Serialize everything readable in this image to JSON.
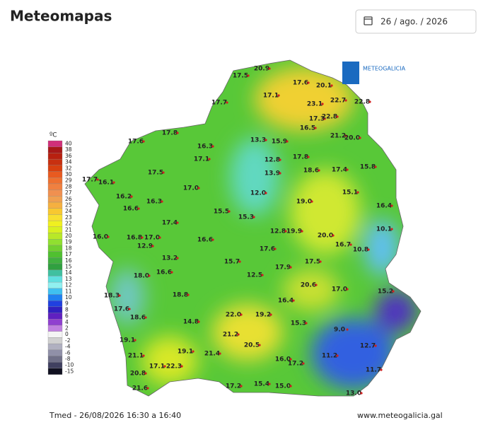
{
  "header": {
    "title": "Meteomapas",
    "date": "26 / ago. / 2026"
  },
  "map": {
    "logo": "METEOGALICIA",
    "caption": "Tmed - 26/08/2026 16:30 a 16:40",
    "website": "www.meteogalicia.gal",
    "readings": [
      "17.5",
      "20.9",
      "17.6",
      "20.1",
      "17.1",
      "17.7",
      "23.1",
      "22.7",
      "22.8",
      "17.3",
      "22.8",
      "16.5",
      "21.2",
      "20.0",
      "17.8",
      "17.6",
      "16.3",
      "13.3",
      "15.9",
      "12.8",
      "17.8",
      "17.1",
      "15.8",
      "17.5",
      "13.9",
      "18.6",
      "17.4",
      "17.7",
      "16.1",
      "17.0",
      "12.0",
      "15.1",
      "16.2",
      "16.3",
      "19.0",
      "16.6",
      "16.4",
      "15.5",
      "15.3",
      "17.4",
      "12.8",
      "19.9",
      "20.0",
      "10.1",
      "16.8",
      "17.0",
      "16.6",
      "16.0",
      "12.9",
      "17.6",
      "16.7",
      "10.8",
      "13.2",
      "15.7",
      "17.9",
      "17.5",
      "12.5",
      "18.8",
      "16.4",
      "20.6",
      "17.0",
      "15.2",
      "22.0",
      "19.2",
      "15.3",
      "9.0",
      "21.2",
      "20.5",
      "16.0",
      "17.2",
      "11.2",
      "12.7",
      "11.7",
      "17.2",
      "15.4",
      "15.0",
      "13.0",
      "21.6",
      "20.8",
      "17.1",
      "22.3",
      "21.4",
      "19.1",
      "14.8",
      "16.6",
      "18.0",
      "18.3",
      "17.6",
      "19.1",
      "21.1",
      "18.6"
    ]
  },
  "legend": {
    "unit": "ºC",
    "items": [
      {
        "label": "40",
        "color": "#d0307a"
      },
      {
        "label": "38",
        "color": "#a81818"
      },
      {
        "label": "36",
        "color": "#b82010"
      },
      {
        "label": "34",
        "color": "#c83010"
      },
      {
        "label": "32",
        "color": "#d84010"
      },
      {
        "label": "30",
        "color": "#e85a20"
      },
      {
        "label": "29",
        "color": "#ee7030"
      },
      {
        "label": "28",
        "color": "#f08040"
      },
      {
        "label": "27",
        "color": "#f09050"
      },
      {
        "label": "26",
        "color": "#f0a050"
      },
      {
        "label": "25",
        "color": "#f5b040"
      },
      {
        "label": "24",
        "color": "#f8c830"
      },
      {
        "label": "23",
        "color": "#f8e030"
      },
      {
        "label": "22",
        "color": "#f0f020"
      },
      {
        "label": "21",
        "color": "#d8f020"
      },
      {
        "label": "20",
        "color": "#b8e828"
      },
      {
        "label": "19",
        "color": "#90e030"
      },
      {
        "label": "18",
        "color": "#70d030"
      },
      {
        "label": "17",
        "color": "#50c030"
      },
      {
        "label": "16",
        "color": "#40b040"
      },
      {
        "label": "15",
        "color": "#30a040"
      },
      {
        "label": "14",
        "color": "#40c0a0"
      },
      {
        "label": "13",
        "color": "#60e0e0"
      },
      {
        "label": "12",
        "color": "#90f0f0"
      },
      {
        "label": "11",
        "color": "#40c0f0"
      },
      {
        "label": "10",
        "color": "#2080f0"
      },
      {
        "label": "9",
        "color": "#2040e0"
      },
      {
        "label": "8",
        "color": "#3020c0"
      },
      {
        "label": "6",
        "color": "#6020c0"
      },
      {
        "label": "4",
        "color": "#9040d0"
      },
      {
        "label": "2",
        "color": "#c080e0"
      },
      {
        "label": "0",
        "color": "#f4f4f4"
      },
      {
        "label": "-2",
        "color": "#d0d0d0"
      },
      {
        "label": "-4",
        "color": "#b0b0c0"
      },
      {
        "label": "-6",
        "color": "#9090a8"
      },
      {
        "label": "-8",
        "color": "#707088"
      },
      {
        "label": "-10",
        "color": "#404060"
      },
      {
        "label": "-15",
        "color": "#101020"
      }
    ]
  }
}
